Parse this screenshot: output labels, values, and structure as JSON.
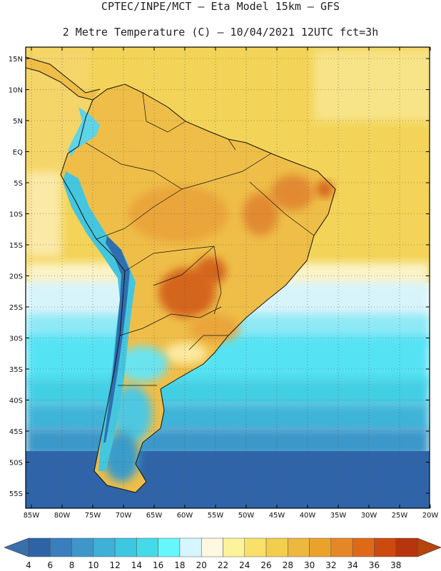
{
  "header": {
    "title_line1": "CPTEC/INPE/MCT –  Eta Model 15km – GFS",
    "title_line2": "2 Metre Temperature (C) – 10/04/2021 12UTC fct=3h"
  },
  "map": {
    "lat_labels": [
      "15N",
      "10N",
      "5N",
      "EQ",
      "5S",
      "10S",
      "15S",
      "20S",
      "25S",
      "30S",
      "35S",
      "40S",
      "45S",
      "50S",
      "55S"
    ],
    "lon_labels": [
      "85W",
      "80W",
      "75W",
      "70W",
      "65W",
      "60W",
      "55W",
      "50W",
      "45W",
      "40W",
      "35W",
      "30W",
      "25W",
      "20W"
    ]
  },
  "colorbar": {
    "values": [
      "4",
      "6",
      "8",
      "10",
      "12",
      "14",
      "16",
      "18",
      "20",
      "22",
      "24",
      "26",
      "28",
      "30",
      "32",
      "34",
      "36",
      "38"
    ],
    "colors": [
      "#2e63a6",
      "#3a7ebd",
      "#3f97c9",
      "#3fb1d7",
      "#3ec7e0",
      "#43dbe8",
      "#66f7fb",
      "#d6f6ff",
      "#fcf8e1",
      "#fdf39b",
      "#f8e06b",
      "#f2cd4e",
      "#ecb83d",
      "#e9a22a",
      "#e68727",
      "#de6a18",
      "#cd4a0e",
      "#b6350c"
    ],
    "low_color": "#3a6fad",
    "high_color": "#b5450d"
  }
}
